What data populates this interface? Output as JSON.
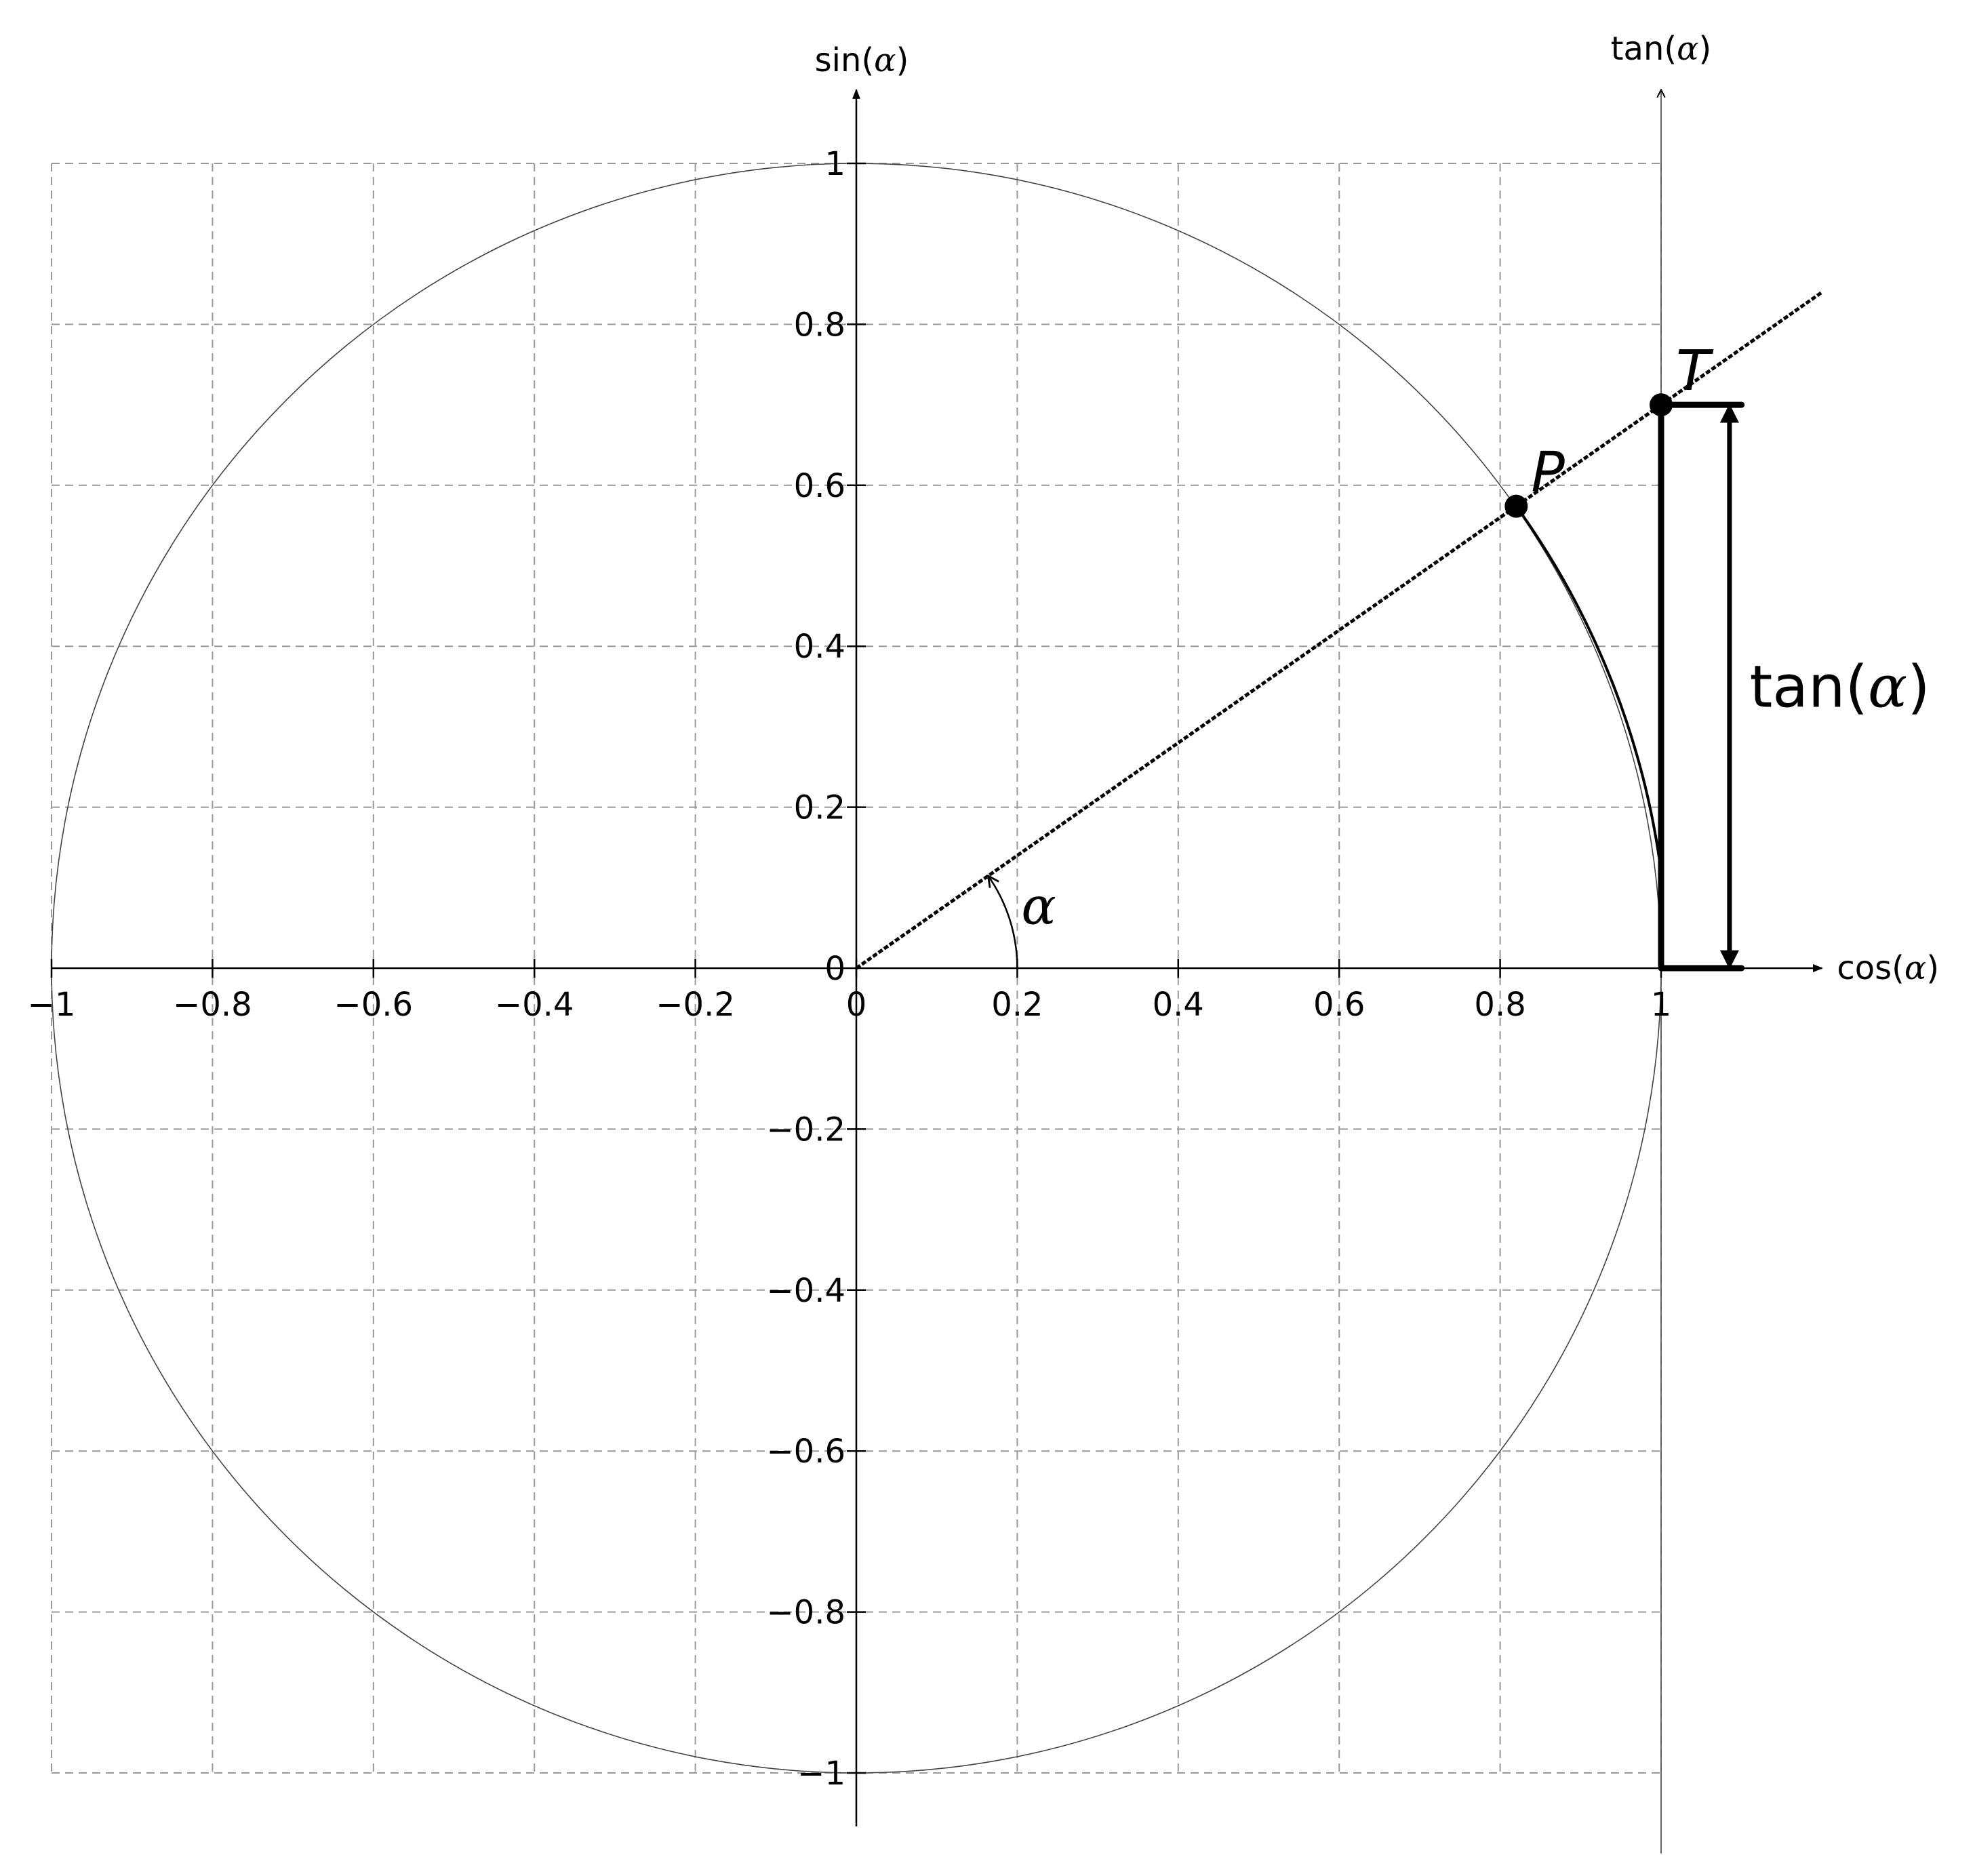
{
  "diagram": {
    "axes": {
      "x_label_prefix": "cos(",
      "x_label_symbol": "α",
      "x_label_suffix": ")",
      "y_label_prefix": "sin(",
      "y_label_symbol": "α",
      "y_label_suffix": ")",
      "t_label_prefix": "tan(",
      "t_label_symbol": "α",
      "t_label_suffix": ")",
      "x_ticks": [
        -1,
        -0.8,
        -0.6,
        -0.4,
        -0.2,
        0,
        0.2,
        0.4,
        0.6,
        0.8,
        1
      ],
      "y_ticks": [
        -1,
        -0.8,
        -0.6,
        -0.4,
        -0.2,
        0,
        0.2,
        0.4,
        0.6,
        0.8,
        1
      ],
      "x_range": [
        -1,
        1.2
      ],
      "y_range": [
        -1.1,
        1.1
      ],
      "grid": true,
      "grid_style": "dashed"
    },
    "unit_circle": {
      "radius": 1
    },
    "angle": {
      "symbol": "α",
      "degrees": 35
    },
    "points": [
      {
        "label": "P",
        "x": 0.82,
        "y": 0.574
      },
      {
        "label": "T",
        "x": 1,
        "y": 0.7
      }
    ],
    "tangent_label_prefix": "tan(",
    "tangent_label_symbol": "α",
    "tangent_label_suffix": ")",
    "colors": {
      "ink": "#000000",
      "grid": "#9a9a9a",
      "circle": "#444444"
    }
  }
}
